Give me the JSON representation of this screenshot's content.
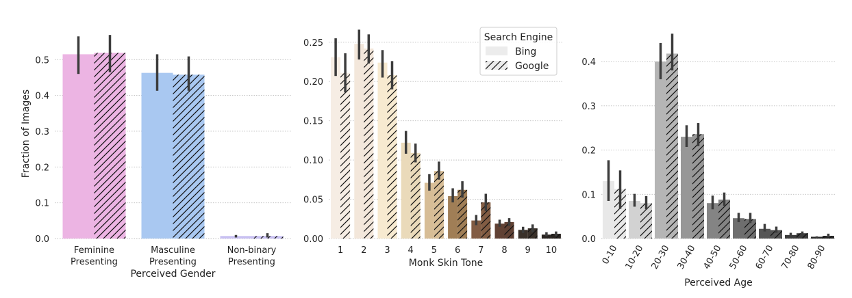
{
  "chart_data": [
    {
      "type": "bar",
      "xlabel": "Perceived Gender",
      "ylabel": "Fraction of Images",
      "ylim": [
        0,
        0.575
      ],
      "yticks": [
        "0.0",
        "0.1",
        "0.2",
        "0.3",
        "0.4",
        "0.5"
      ],
      "categories": [
        "Feminine\nPresenting",
        "Masculine\nPresenting",
        "Non-binary\nPresenting"
      ],
      "colors": [
        "#ecb4e3",
        "#a9c8f1",
        "#c8c0f2"
      ],
      "series": [
        {
          "name": "Bing",
          "values": [
            0.515,
            0.463,
            0.007
          ],
          "ci": [
            [
              0.46,
              0.565
            ],
            [
              0.413,
              0.515
            ],
            [
              0.003,
              0.01
            ]
          ]
        },
        {
          "name": "Google",
          "values": [
            0.519,
            0.458,
            0.007
          ],
          "ci": [
            [
              0.465,
              0.569
            ],
            [
              0.413,
              0.509
            ],
            [
              0.003,
              0.015
            ]
          ]
        }
      ],
      "grid": "y"
    },
    {
      "type": "bar",
      "xlabel": "Monk Skin Tone",
      "ylabel": "",
      "ylim": [
        0,
        0.262
      ],
      "yticks": [
        "0.00",
        "0.05",
        "0.10",
        "0.15",
        "0.20",
        "0.25"
      ],
      "categories": [
        "1",
        "2",
        "3",
        "4",
        "5",
        "6",
        "7",
        "8",
        "9",
        "10"
      ],
      "colors": [
        "#f6ede4",
        "#f3e7db",
        "#f7ead0",
        "#eadaba",
        "#d7bd96",
        "#a07e56",
        "#825c43",
        "#604134",
        "#3a312a",
        "#292420"
      ],
      "series": [
        {
          "name": "Bing",
          "values": [
            0.231,
            0.248,
            0.224,
            0.122,
            0.071,
            0.054,
            0.023,
            0.019,
            0.011,
            0.005
          ],
          "ci": [
            [
              0.207,
              0.255
            ],
            [
              0.228,
              0.266
            ],
            [
              0.205,
              0.24
            ],
            [
              0.108,
              0.137
            ],
            [
              0.061,
              0.082
            ],
            [
              0.046,
              0.064
            ],
            [
              0.017,
              0.03
            ],
            [
              0.015,
              0.024
            ],
            [
              0.007,
              0.015
            ],
            [
              0.003,
              0.008
            ]
          ]
        },
        {
          "name": "Google",
          "values": [
            0.211,
            0.242,
            0.208,
            0.109,
            0.086,
            0.062,
            0.046,
            0.021,
            0.013,
            0.006
          ],
          "ci": [
            [
              0.186,
              0.236
            ],
            [
              0.223,
              0.26
            ],
            [
              0.19,
              0.226
            ],
            [
              0.097,
              0.121
            ],
            [
              0.075,
              0.098
            ],
            [
              0.052,
              0.073
            ],
            [
              0.035,
              0.057
            ],
            [
              0.016,
              0.026
            ],
            [
              0.008,
              0.018
            ],
            [
              0.003,
              0.009
            ]
          ]
        }
      ],
      "legend": {
        "title": "Search Engine",
        "entries": [
          "Bing",
          "Google"
        ],
        "position": "top-right"
      },
      "grid": "y"
    },
    {
      "type": "bar",
      "xlabel": "Perceived Age",
      "ylabel": "",
      "ylim": [
        0,
        0.465
      ],
      "yticks": [
        "0.0",
        "0.1",
        "0.2",
        "0.3",
        "0.4"
      ],
      "categories": [
        "0-10",
        "10-20",
        "20-30",
        "30-40",
        "40-50",
        "50-60",
        "60-70",
        "70-80",
        "80-90"
      ],
      "colors": [
        "#e8e8e8",
        "#d2d2d2",
        "#b5b5b5",
        "#979797",
        "#848484",
        "#6e6e6e",
        "#555555",
        "#3c3c3c",
        "#262626"
      ],
      "series": [
        {
          "name": "Bing",
          "values": [
            0.13,
            0.085,
            0.4,
            0.23,
            0.08,
            0.046,
            0.022,
            0.008,
            0.004
          ],
          "ci": [
            [
              0.085,
              0.177
            ],
            [
              0.072,
              0.101
            ],
            [
              0.36,
              0.442
            ],
            [
              0.207,
              0.256
            ],
            [
              0.066,
              0.097
            ],
            [
              0.037,
              0.058
            ],
            [
              0.016,
              0.033
            ],
            [
              0.005,
              0.013
            ],
            [
              0.002,
              0.005
            ]
          ]
        },
        {
          "name": "Google",
          "values": [
            0.112,
            0.08,
            0.418,
            0.236,
            0.088,
            0.044,
            0.019,
            0.012,
            0.006
          ],
          "ci": [
            [
              0.067,
              0.154
            ],
            [
              0.066,
              0.096
            ],
            [
              0.38,
              0.463
            ],
            [
              0.209,
              0.261
            ],
            [
              0.074,
              0.104
            ],
            [
              0.035,
              0.058
            ],
            [
              0.013,
              0.027
            ],
            [
              0.007,
              0.016
            ],
            [
              0.003,
              0.011
            ]
          ]
        }
      ],
      "grid": "y"
    }
  ]
}
